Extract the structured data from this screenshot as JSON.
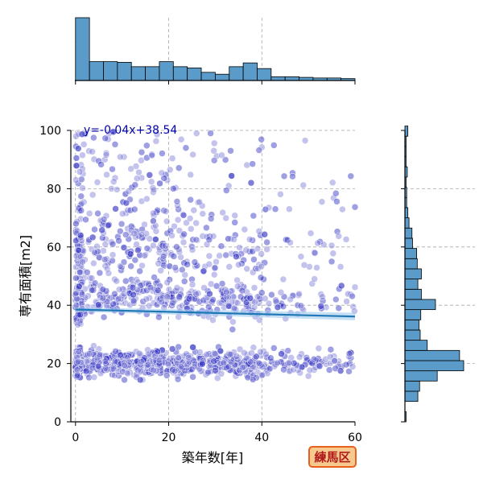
{
  "chart_data": {
    "type": "scatter",
    "x": [],
    "y": [],
    "xlabel": "築年数[年]",
    "ylabel": "専有面積[m2]",
    "xlim": [
      -1,
      60
    ],
    "ylim": [
      0,
      100
    ],
    "xticks": [
      "0",
      "20",
      "40",
      "60"
    ],
    "yticks": [
      "0",
      "20",
      "40",
      "60",
      "80",
      "100"
    ],
    "grid": true,
    "regression": {
      "slope": -0.04,
      "intercept": 38.54,
      "label": "y=-0.04x+38.54"
    },
    "colors": {
      "points": "#3333cc",
      "line": "#1f77b4",
      "hist": "#5a9bc9"
    },
    "marginal_x_hist": {
      "bin_edges": [
        0,
        3,
        6,
        9,
        12,
        15,
        18,
        21,
        24,
        27,
        30,
        33,
        36,
        39,
        42,
        45,
        48,
        51,
        54,
        57,
        60
      ],
      "values": [
        1.0,
        0.3,
        0.3,
        0.29,
        0.22,
        0.22,
        0.3,
        0.22,
        0.2,
        0.13,
        0.1,
        0.22,
        0.28,
        0.19,
        0.06,
        0.06,
        0.05,
        0.04,
        0.04,
        0.03
      ]
    },
    "marginal_y_hist": {
      "bin_edges": [
        0,
        3.5,
        7,
        10.5,
        14,
        17.5,
        21,
        24.5,
        28,
        31.5,
        35,
        38.5,
        42,
        45.5,
        49,
        52.5,
        56,
        59.5,
        63,
        66.5,
        70,
        73.5,
        77,
        80.5,
        84,
        87.5,
        91,
        94.5,
        98,
        101.5
      ],
      "values": [
        0.02,
        0.0,
        0.22,
        0.25,
        0.55,
        1.0,
        0.93,
        0.38,
        0.26,
        0.24,
        0.27,
        0.52,
        0.28,
        0.22,
        0.28,
        0.21,
        0.2,
        0.13,
        0.12,
        0.07,
        0.05,
        0.03,
        0.03,
        0.02,
        0.04,
        0.02,
        0.02,
        0.02,
        0.05
      ]
    }
  },
  "badge": {
    "label": "練馬区"
  }
}
